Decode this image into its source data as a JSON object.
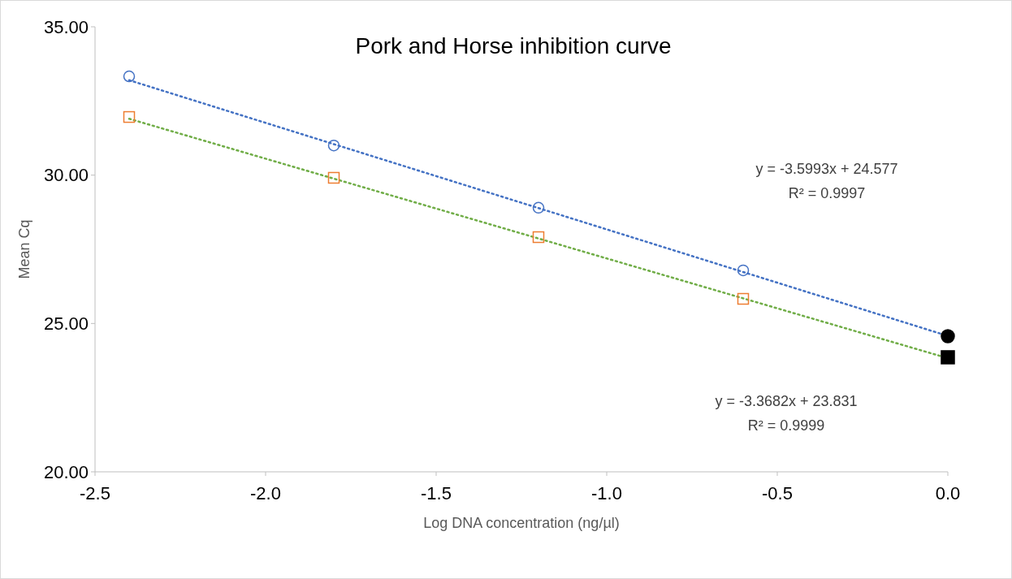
{
  "chart_data": {
    "type": "scatter",
    "title": "Pork and Horse inhibition curve",
    "xlabel": "Log DNA concentration (ng/µl)",
    "ylabel": "Mean Cq",
    "series": [
      {
        "color": "#4472c4",
        "marker": "circle",
        "x": [
          -2.4,
          -1.8,
          -1.2,
          -0.6
        ],
        "values": [
          33.33,
          31.0,
          28.9,
          26.79
        ]
      },
      {
        "color": "#ed7d31",
        "marker": "square",
        "x": [
          -2.4,
          -1.8,
          -1.2,
          -0.6
        ],
        "values": [
          31.96,
          29.91,
          27.91,
          25.83
        ]
      },
      {
        "color": "#000000",
        "marker": "circle",
        "x": [
          0
        ],
        "values": [
          24.57
        ]
      },
      {
        "color": "#000000",
        "marker": "square",
        "x": [
          0
        ],
        "values": [
          23.86
        ]
      },
      {
        "type": "line",
        "color": "#4472c4",
        "line_style": "dotted",
        "x": [
          -2.4,
          0
        ],
        "values": [
          33.2,
          24.58
        ]
      },
      {
        "type": "line",
        "color": "#70ad47",
        "line_style": "dotted",
        "x": [
          -2.4,
          0
        ],
        "values": [
          31.9,
          23.83
        ]
      }
    ],
    "xlim": [
      -2.5,
      0
    ],
    "xticks": [
      {
        "value": -2.5,
        "label": "-2.5"
      },
      {
        "value": -2,
        "label": "-2.0"
      },
      {
        "value": -1.5,
        "label": "-1.5"
      },
      {
        "value": -1,
        "label": "-1.0"
      },
      {
        "value": -0.5,
        "label": "-0.5"
      },
      {
        "value": 0,
        "label": "0.0"
      }
    ],
    "ylim": [
      20,
      35
    ],
    "yticks": [
      {
        "value": 20,
        "label": "20.00"
      },
      {
        "value": 25,
        "label": "25.00"
      },
      {
        "value": 30,
        "label": "30.00"
      },
      {
        "value": 35,
        "label": "35.00"
      }
    ],
    "annotations": [
      "y = -3.5993x + 24.577",
      "R² = 0.9997",
      "y = -3.3682x + 23.831",
      "R² = 0.9999"
    ]
  }
}
